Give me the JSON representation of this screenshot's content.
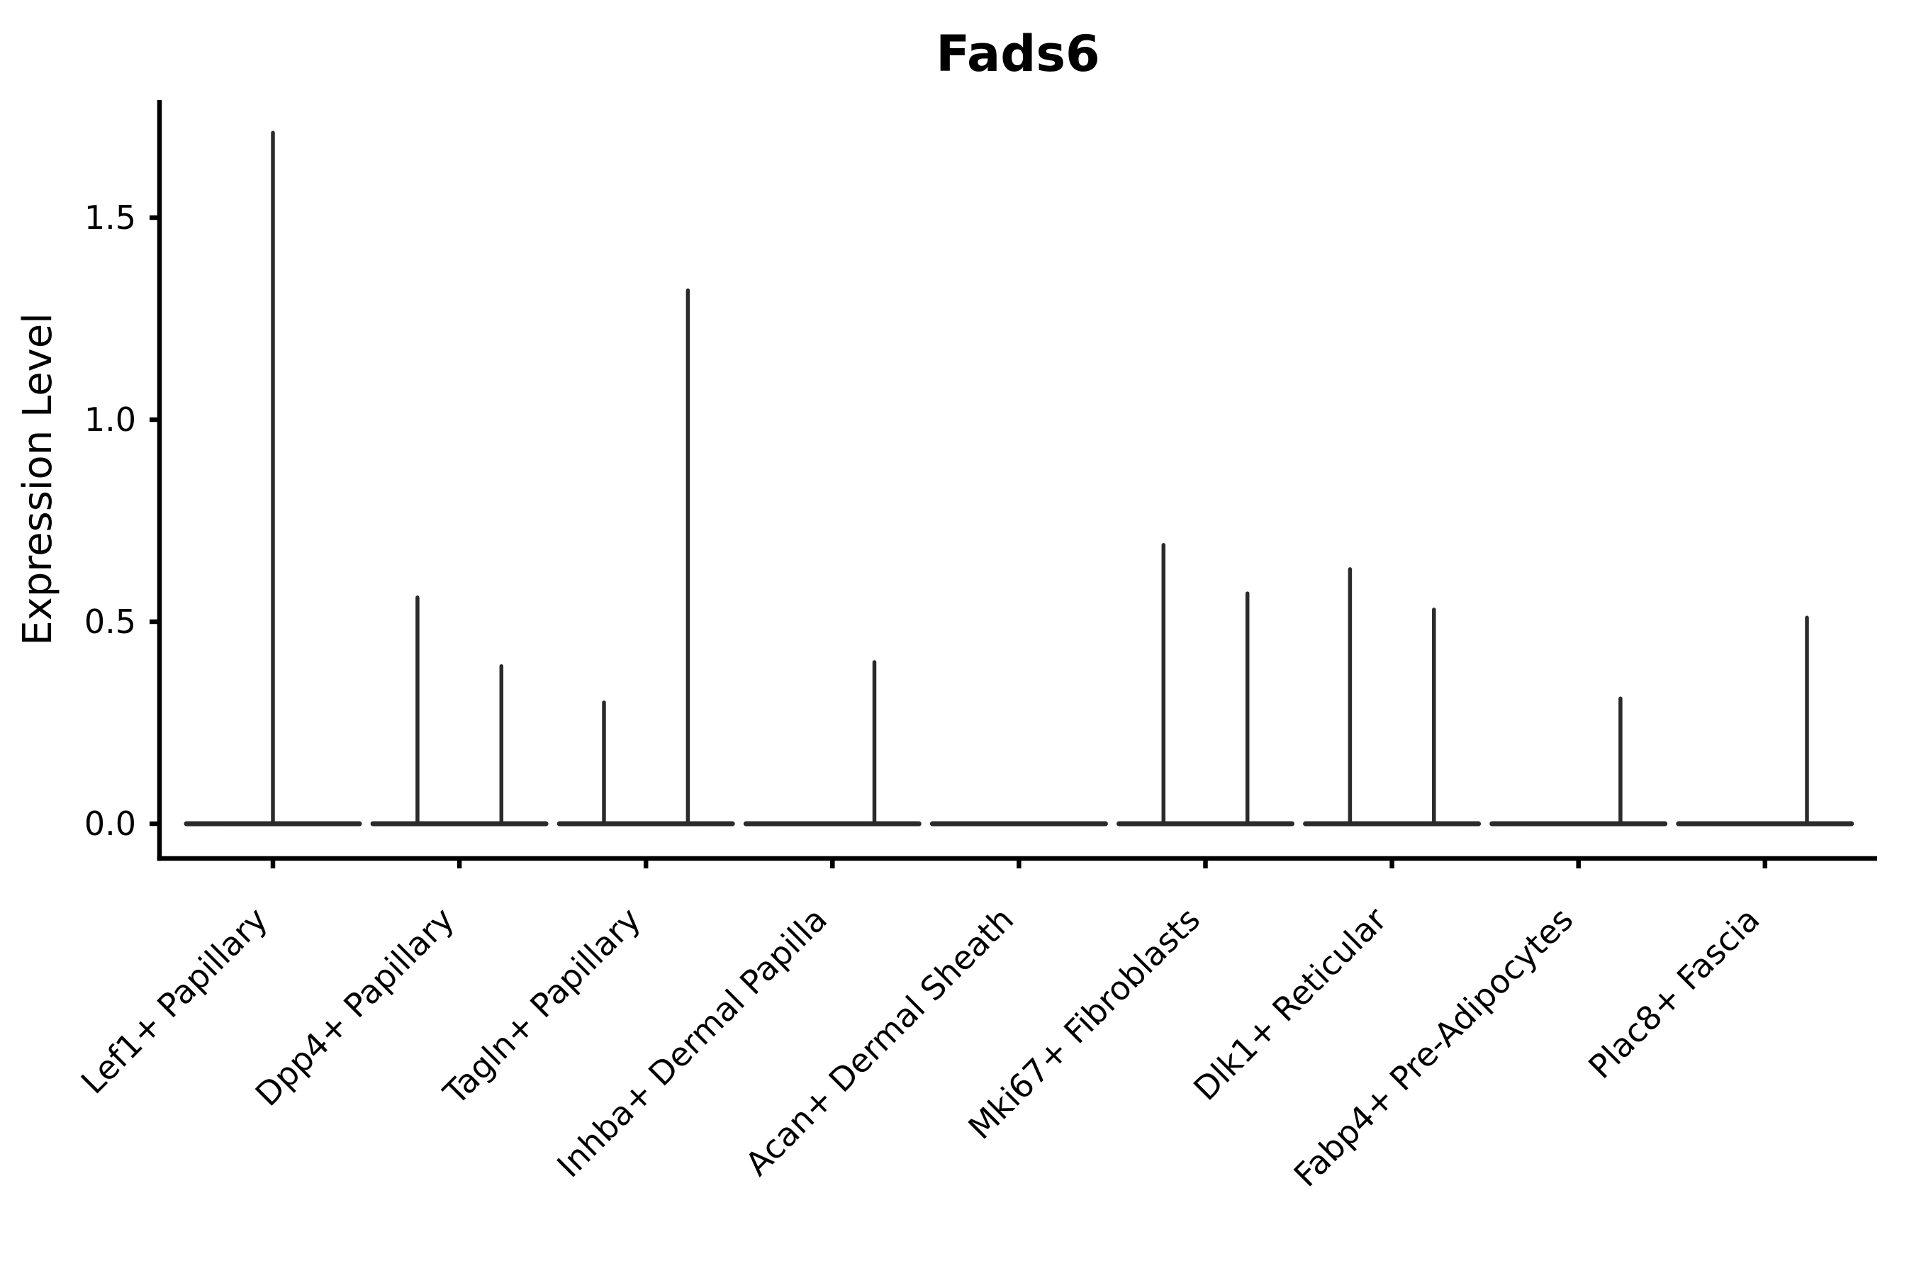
{
  "chart_data": {
    "type": "violin",
    "title": "Fads6",
    "xlabel": "",
    "ylabel": "Expression Level",
    "yticks": [
      0.0,
      0.5,
      1.0,
      1.5
    ],
    "ytick_labels": [
      "0.0",
      "0.5",
      "1.0",
      "1.5"
    ],
    "ylim": [
      -0.09,
      1.79
    ],
    "grid": false,
    "legend": "none",
    "categories": [
      "Lef1+ Papillary",
      "Dpp4+ Papillary",
      "Tagln+ Papillary",
      "Inhba+ Dermal Papilla",
      "Acan+ Dermal Sheath",
      "Mki67+ Fibroblasts",
      "Dlk1+ Reticular",
      "Fabp4+ Pre-Adipocytes",
      "Plac8+ Fascia"
    ],
    "violins": [
      {
        "category": "Lef1+ Papillary",
        "baseline_value": 0.0,
        "spikes": [
          {
            "offset": 0.0,
            "max_expression": 1.71
          }
        ]
      },
      {
        "category": "Dpp4+ Papillary",
        "baseline_value": 0.0,
        "spikes": [
          {
            "offset": -0.225,
            "max_expression": 0.56
          },
          {
            "offset": 0.225,
            "max_expression": 0.39
          }
        ]
      },
      {
        "category": "Tagln+ Papillary",
        "baseline_value": 0.0,
        "spikes": [
          {
            "offset": -0.225,
            "max_expression": 0.3
          },
          {
            "offset": 0.225,
            "max_expression": 1.32
          }
        ]
      },
      {
        "category": "Inhba+ Dermal Papilla",
        "baseline_value": 0.0,
        "spikes": [
          {
            "offset": 0.225,
            "max_expression": 0.4
          }
        ]
      },
      {
        "category": "Acan+ Dermal Sheath",
        "baseline_value": 0.0,
        "spikes": []
      },
      {
        "category": "Mki67+ Fibroblasts",
        "baseline_value": 0.0,
        "spikes": [
          {
            "offset": -0.225,
            "max_expression": 0.69
          },
          {
            "offset": 0.225,
            "max_expression": 0.57
          }
        ]
      },
      {
        "category": "Dlk1+ Reticular",
        "baseline_value": 0.0,
        "spikes": [
          {
            "offset": -0.225,
            "max_expression": 0.63
          },
          {
            "offset": 0.225,
            "max_expression": 0.53
          }
        ]
      },
      {
        "category": "Fabp4+ Pre-Adipocytes",
        "baseline_value": 0.0,
        "spikes": [
          {
            "offset": 0.225,
            "max_expression": 0.31
          }
        ]
      },
      {
        "category": "Plac8+ Fascia",
        "baseline_value": 0.0,
        "spikes": [
          {
            "offset": 0.225,
            "max_expression": 0.51
          }
        ]
      }
    ],
    "colors": {
      "violin": "#2b2b2b",
      "axis": "#000000",
      "text": "#000000",
      "background": "#ffffff"
    }
  }
}
